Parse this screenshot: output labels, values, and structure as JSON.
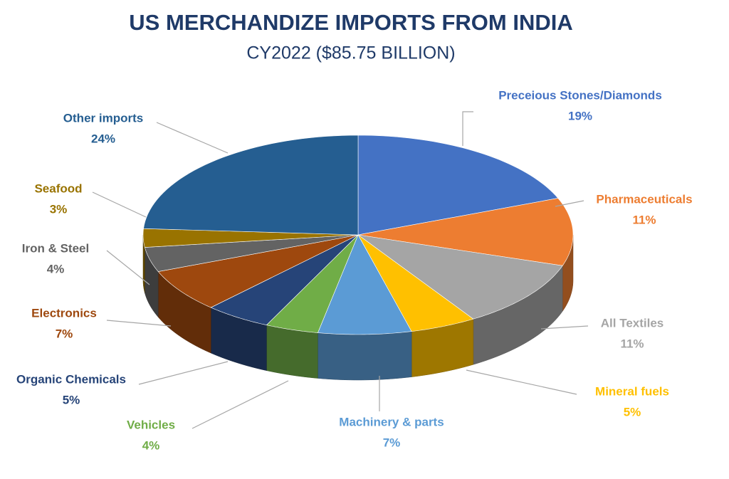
{
  "chart_data": {
    "type": "pie",
    "title": "US MERCHANDIZE IMPORTS FROM INDIA",
    "subtitle": "CY2022 ($85.75 BILLION)",
    "categories": [
      "Preceious Stones/Diamonds",
      "Pharmaceuticals",
      "All Textiles",
      "Mineral fuels",
      "Machinery & parts",
      "Vehicles",
      "Organic Chemicals",
      "Electronics",
      "Iron & Steel",
      "Seafood",
      "Other imports"
    ],
    "values": [
      19,
      11,
      11,
      5,
      7,
      4,
      5,
      7,
      4,
      3,
      24
    ],
    "value_labels": [
      "19%",
      "11%",
      "11%",
      "5%",
      "7%",
      "4%",
      "5%",
      "7%",
      "4%",
      "3%",
      "24%"
    ],
    "colors": [
      "#4472c4",
      "#ed7d31",
      "#a5a5a5",
      "#ffc000",
      "#5b9bd5",
      "#70ad47",
      "#264478",
      "#9e480e",
      "#636363",
      "#997300",
      "#255e91"
    ]
  }
}
